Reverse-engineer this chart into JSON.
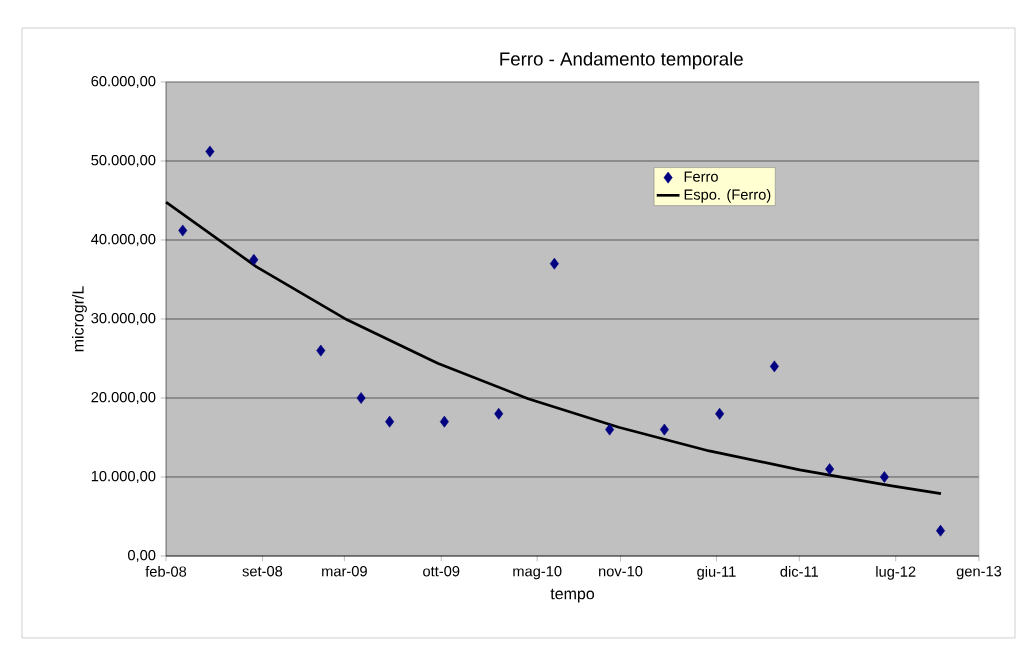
{
  "chart_data": {
    "type": "scatter",
    "title": "Ferro - Andamento temporale",
    "xlabel": "tempo",
    "ylabel": "microgr/L",
    "series": [
      {
        "name": "Ferro",
        "marker": "diamond",
        "color": "#000080",
        "x": [
          "2008-03-09",
          "2008-05-08",
          "2008-08-13",
          "2009-01-08",
          "2009-04-07",
          "2009-06-09",
          "2009-10-08",
          "2010-02-05",
          "2010-06-08",
          "2010-10-08",
          "2011-02-06",
          "2011-06-08",
          "2011-10-07",
          "2012-02-06",
          "2012-06-06",
          "2012-10-08"
        ],
        "values": [
          41200,
          51200,
          37500,
          26000,
          20000,
          17000,
          17000,
          18000,
          37000,
          16000,
          16000,
          18000,
          24000,
          11000,
          10000,
          3200
        ]
      },
      {
        "name": "Espo. (Ferro)",
        "type": "line",
        "marker": "none",
        "line_style": "solid",
        "color": "#000000",
        "x": [
          "2008-02-01",
          "2008-08-19",
          "2009-03-07",
          "2009-09-23",
          "2010-04-11",
          "2010-10-28",
          "2011-05-16",
          "2011-12-02",
          "2012-06-19",
          "2012-10-09"
        ],
        "values": [
          44800,
          36600,
          29900,
          24400,
          19900,
          16300,
          13300,
          10900,
          8900,
          7900
        ]
      }
    ],
    "xlim": [
      "2008-02-01",
      "2013-01-01"
    ],
    "xticks": [
      {
        "value": "2008-02-01",
        "label": "feb-08"
      },
      {
        "value": "2008-09-01",
        "label": "set-08"
      },
      {
        "value": "2009-03-01",
        "label": "mar-09"
      },
      {
        "value": "2009-10-01",
        "label": "ott-09"
      },
      {
        "value": "2010-05-01",
        "label": "mag-10"
      },
      {
        "value": "2010-11-01",
        "label": "nov-10"
      },
      {
        "value": "2011-06-01",
        "label": "giu-11"
      },
      {
        "value": "2011-12-01",
        "label": "dic-11"
      },
      {
        "value": "2012-07-01",
        "label": "lug-12"
      },
      {
        "value": "2013-01-01",
        "label": "gen-13"
      }
    ],
    "ylim": [
      0,
      60000
    ],
    "yticks": [
      {
        "value": 0,
        "label": "0,00"
      },
      {
        "value": 10000,
        "label": "10.000,00"
      },
      {
        "value": 20000,
        "label": "20.000,00"
      },
      {
        "value": 30000,
        "label": "30.000,00"
      },
      {
        "value": 40000,
        "label": "40.000,00"
      },
      {
        "value": 50000,
        "label": "50.000,00"
      },
      {
        "value": 60000,
        "label": "60.000,00"
      }
    ],
    "grid": "y",
    "legend": "top right"
  }
}
